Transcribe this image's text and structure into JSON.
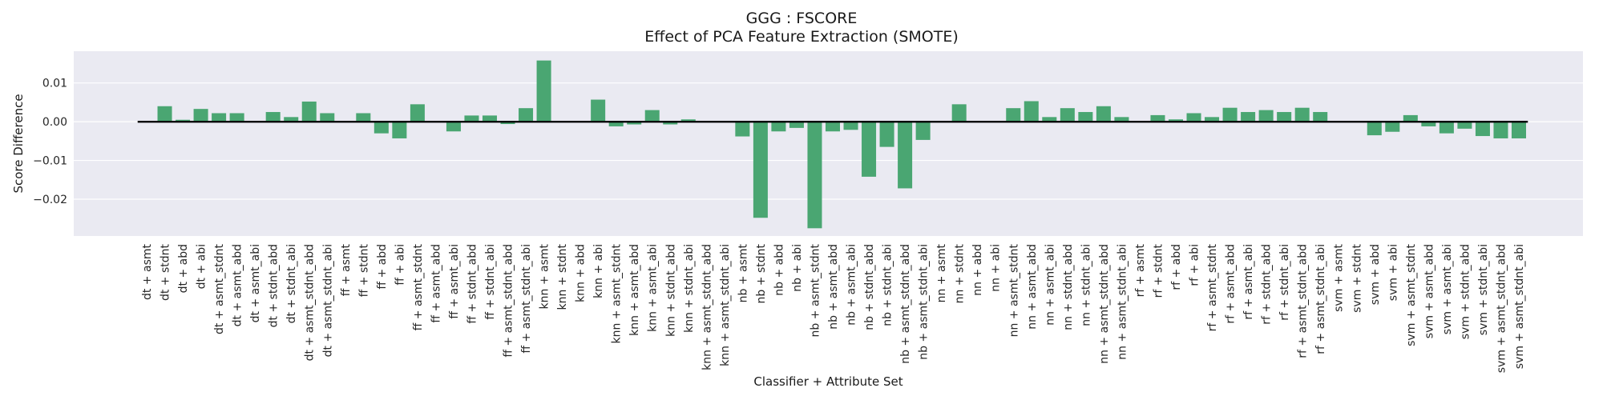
{
  "chart_data": {
    "type": "bar",
    "title": "GGG : FSCORE",
    "subtitle": "Effect of PCA Feature Extraction (SMOTE)",
    "xlabel": "Classifier + Attribute Set",
    "ylabel": "Score Difference",
    "ylim": [
      -0.0295,
      0.0182
    ],
    "yticks": [
      0.01,
      0.0,
      -0.01,
      -0.02
    ],
    "ytick_labels": [
      "0.01",
      "0.00",
      "−0.01",
      "−0.02"
    ],
    "grid": true,
    "bar_color": "#4aa672",
    "background_color": "#eaeaf2",
    "zero_line_color": "#000000",
    "categories": [
      "dt + asmt",
      "dt + stdnt",
      "dt + abd",
      "dt + abi",
      "dt + asmt_stdnt",
      "dt + asmt_abd",
      "dt + asmt_abi",
      "dt + stdnt_abd",
      "dt + stdnt_abi",
      "dt + asmt_stdnt_abd",
      "dt + asmt_stdnt_abi",
      "ff + asmt",
      "ff + stdnt",
      "ff + abd",
      "ff + abi",
      "ff + asmt_stdnt",
      "ff + asmt_abd",
      "ff + asmt_abi",
      "ff + stdnt_abd",
      "ff + stdnt_abi",
      "ff + asmt_stdnt_abd",
      "ff + asmt_stdnt_abi",
      "knn + asmt",
      "knn + stdnt",
      "knn + abd",
      "knn + abi",
      "knn + asmt_stdnt",
      "knn + asmt_abd",
      "knn + asmt_abi",
      "knn + stdnt_abd",
      "knn + stdnt_abi",
      "knn + asmt_stdnt_abd",
      "knn + asmt_stdnt_abi",
      "nb + asmt",
      "nb + stdnt",
      "nb + abd",
      "nb + abi",
      "nb + asmt_stdnt",
      "nb + asmt_abd",
      "nb + asmt_abi",
      "nb + stdnt_abd",
      "nb + stdnt_abi",
      "nb + asmt_stdnt_abd",
      "nb + asmt_stdnt_abi",
      "nn + asmt",
      "nn + stdnt",
      "nn + abd",
      "nn + abi",
      "nn + asmt_stdnt",
      "nn + asmt_abd",
      "nn + asmt_abi",
      "nn + stdnt_abd",
      "nn + stdnt_abi",
      "nn + asmt_stdnt_abd",
      "nn + asmt_stdnt_abi",
      "rf + asmt",
      "rf + stdnt",
      "rf + abd",
      "rf + abi",
      "rf + asmt_stdnt",
      "rf + asmt_abd",
      "rf + asmt_abi",
      "rf + stdnt_abd",
      "rf + stdnt_abi",
      "rf + asmt_stdnt_abd",
      "rf + asmt_stdnt_abi",
      "svm + asmt",
      "svm + stdnt",
      "svm + abd",
      "svm + abi",
      "svm + asmt_stdnt",
      "svm + asmt_abd",
      "svm + asmt_abi",
      "svm + stdnt_abd",
      "svm + stdnt_abi",
      "svm + asmt_stdnt_abd",
      "svm + asmt_stdnt_abi"
    ],
    "values": [
      0.0,
      0.004,
      0.0005,
      0.0033,
      0.0022,
      0.0022,
      0.0,
      0.0025,
      0.0012,
      0.0052,
      0.0022,
      0.0,
      0.0022,
      -0.003,
      -0.0043,
      0.0045,
      0.0,
      -0.0025,
      0.0016,
      0.0016,
      -0.0006,
      0.0035,
      0.0158,
      0.0,
      0.0,
      0.0057,
      -0.0012,
      -0.0007,
      0.003,
      -0.0007,
      0.0006,
      0.0,
      0.0,
      -0.0038,
      -0.0248,
      -0.0025,
      -0.0016,
      -0.0275,
      -0.0025,
      -0.0021,
      -0.0142,
      -0.0065,
      -0.0172,
      -0.0047,
      0.0,
      0.0045,
      0.0,
      0.0,
      0.0035,
      0.0053,
      0.0012,
      0.0035,
      0.0025,
      0.004,
      0.0012,
      0.0,
      0.0017,
      0.0006,
      0.0022,
      0.0012,
      0.0036,
      0.0025,
      0.003,
      0.0025,
      0.0036,
      0.0025,
      0.0,
      0.0,
      -0.0035,
      -0.0026,
      0.0017,
      -0.0012,
      -0.003,
      -0.0018,
      -0.0037,
      -0.0043,
      -0.0043
    ]
  }
}
